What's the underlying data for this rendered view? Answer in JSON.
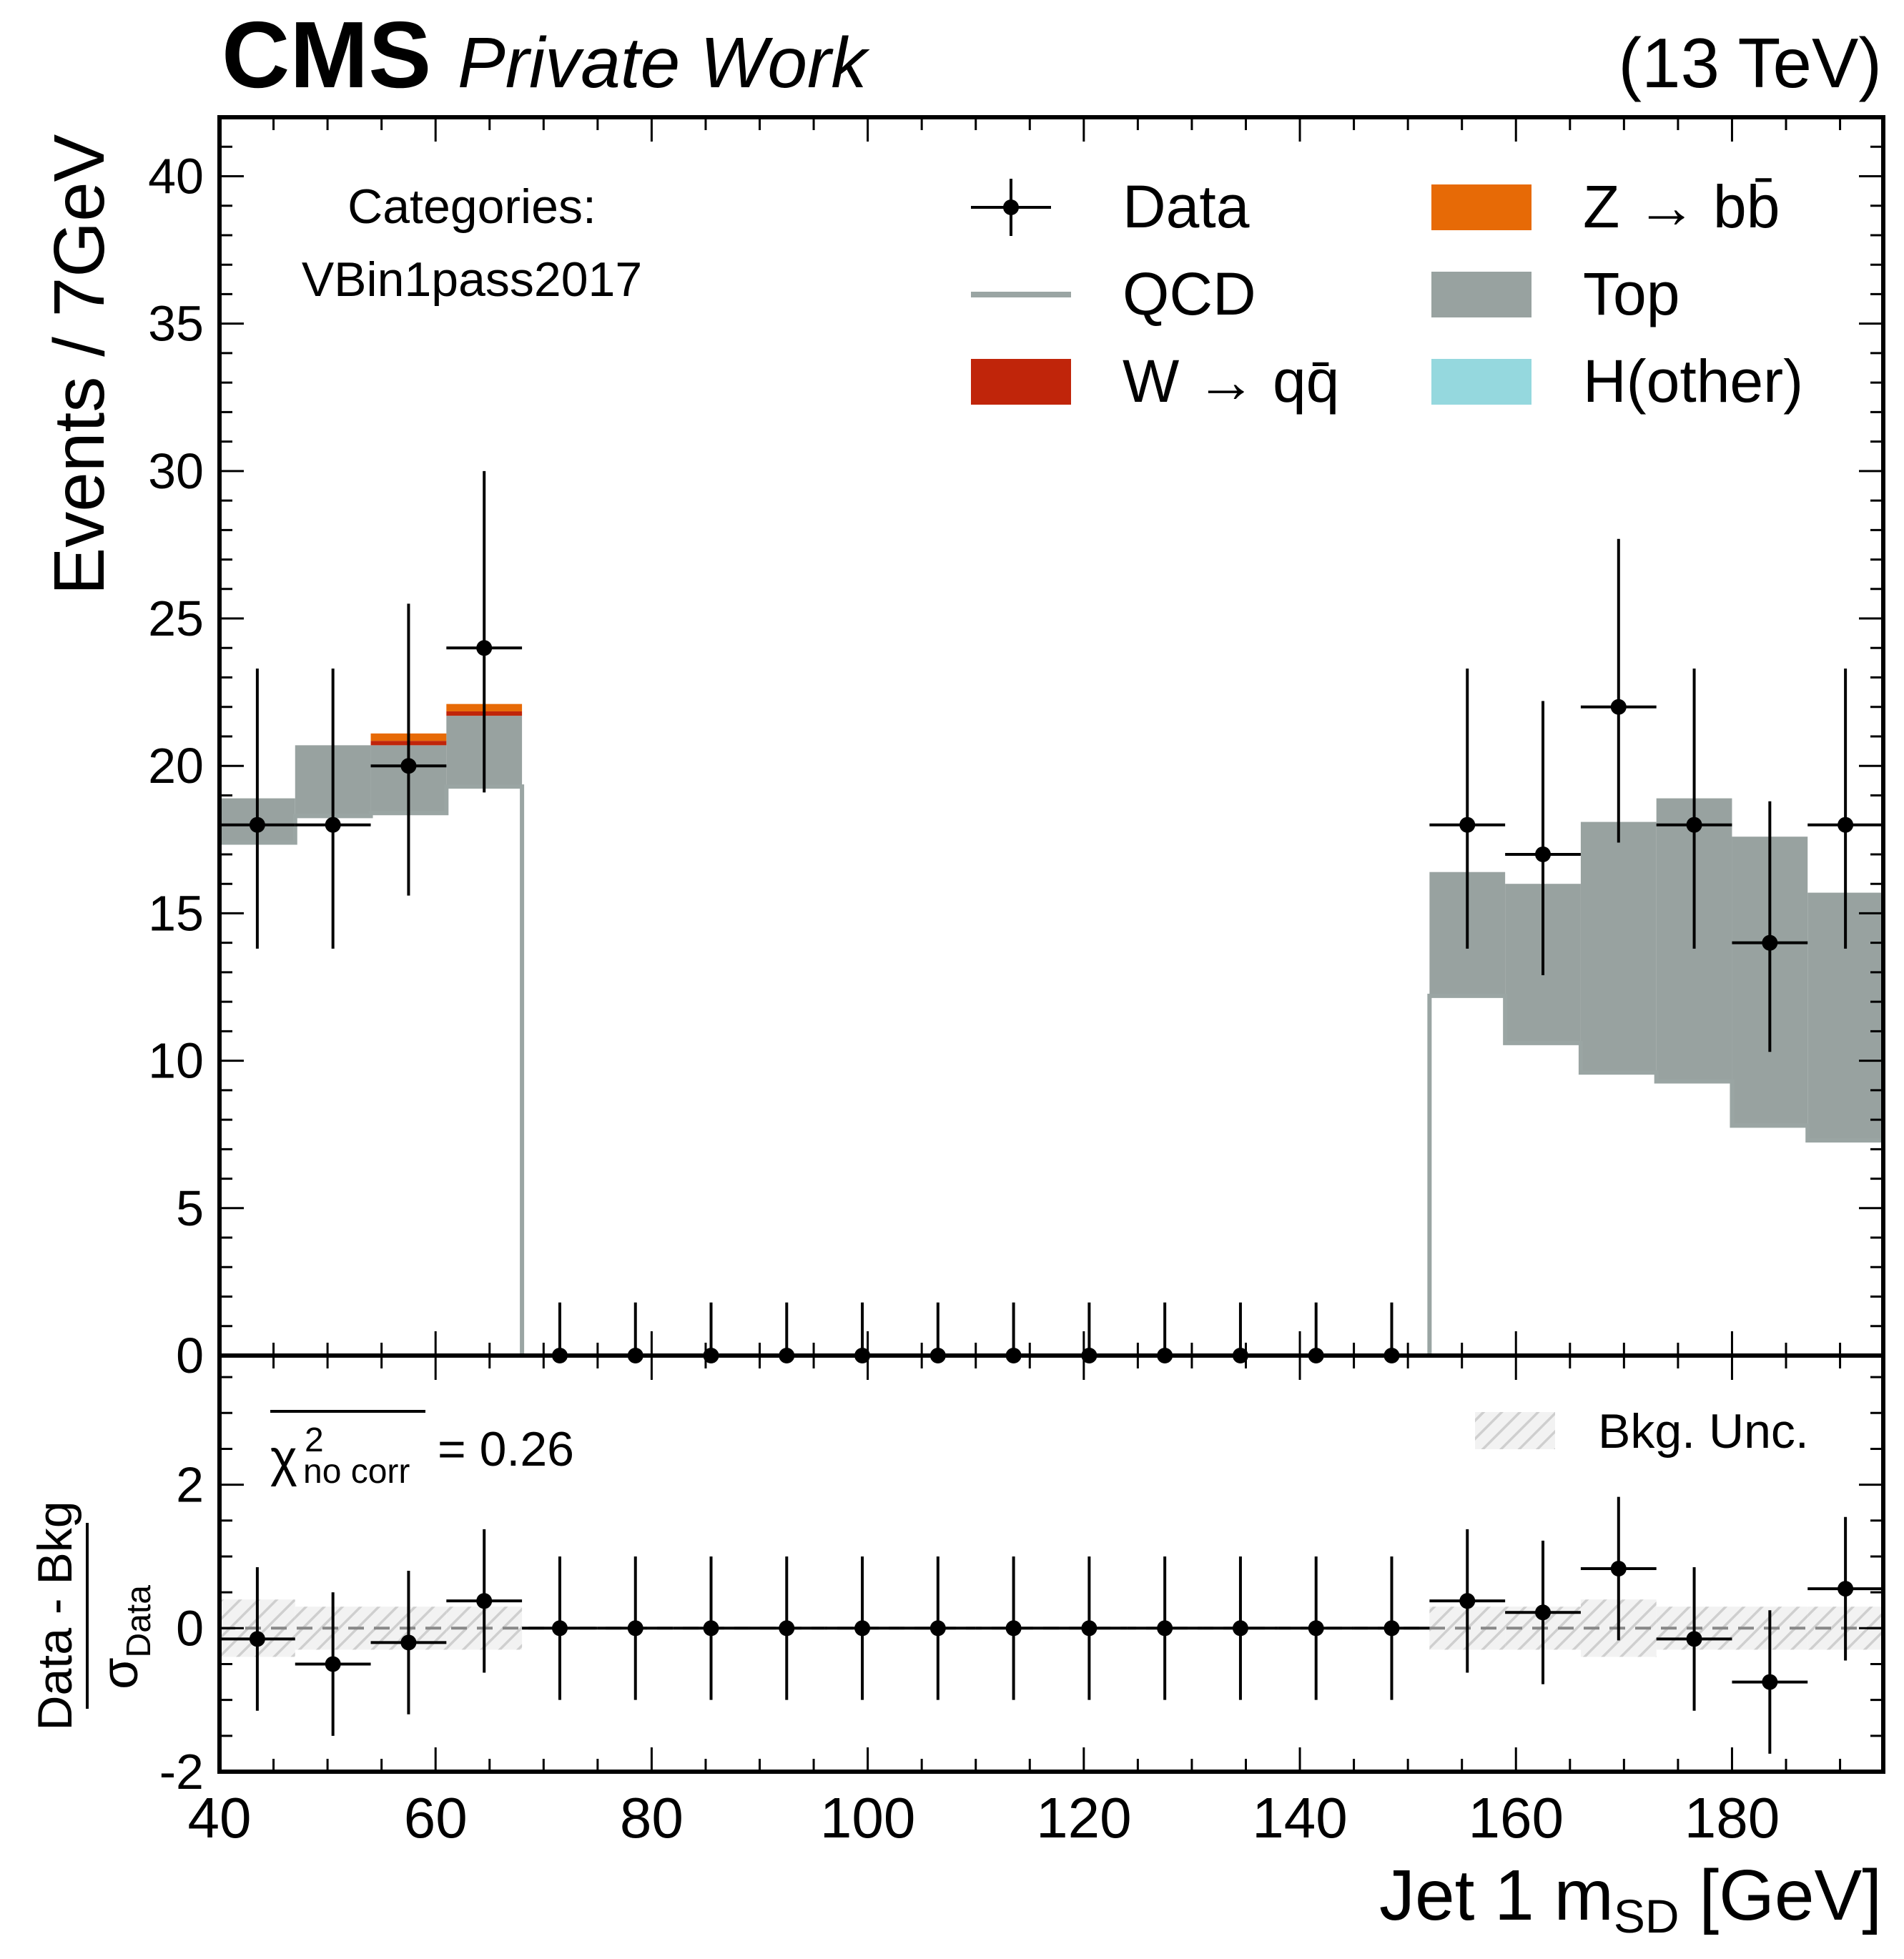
{
  "header": {
    "experiment": "CMS",
    "status": "Private Work",
    "energy": "(13 TeV)"
  },
  "category": {
    "title": "Categories:",
    "name": "VBin1pass2017"
  },
  "legend": {
    "placement": "top-right",
    "entries": [
      {
        "key": "data",
        "label": "Data",
        "style": "errorbar",
        "color": "#000000"
      },
      {
        "key": "qcd",
        "label": "QCD",
        "style": "line",
        "color": "#9aa5a3"
      },
      {
        "key": "wqq",
        "label": "W → qq̄",
        "style": "fill",
        "color": "#c0250a"
      },
      {
        "key": "zbb",
        "label": "Z → bb̄",
        "style": "fill",
        "color": "#e76a06"
      },
      {
        "key": "top",
        "label": "Top",
        "style": "fill",
        "color": "#98a2a0"
      },
      {
        "key": "hother",
        "label": "H(other)",
        "style": "fill",
        "color": "#95d8de"
      }
    ]
  },
  "chi2": {
    "label": "χ²",
    "subscript": "no corr",
    "value": "= 0.26"
  },
  "bkg_unc_label": "Bkg. Unc.",
  "chart_data": [
    {
      "type": "bar",
      "panel": "main",
      "xlabel": "Jet 1 m_SD [GeV]",
      "xlabel_main": "Jet 1 m",
      "xlabel_sub": "SD",
      "xlabel_unit": "[GeV]",
      "ylabel": "Events / 7GeV",
      "xlim": [
        40,
        194
      ],
      "ylim": [
        0,
        42
      ],
      "x_ticks": [
        "40",
        "60",
        "80",
        "100",
        "120",
        "140",
        "160",
        "180"
      ],
      "y_ticks": [
        "0",
        "5",
        "10",
        "15",
        "20",
        "25",
        "30",
        "35",
        "40"
      ],
      "bin_edges": [
        40,
        47,
        54,
        61,
        68,
        75,
        82,
        89,
        96,
        103,
        110,
        117,
        124,
        131,
        138,
        145,
        152,
        159,
        166,
        173,
        180,
        187,
        194
      ],
      "series": [
        {
          "name": "QCD",
          "values": [
            17.4,
            18.3,
            18.4,
            19.3,
            0,
            0,
            0,
            0,
            0,
            0,
            0,
            0,
            0,
            0,
            0,
            0,
            12.2,
            10.6,
            9.6,
            9.3,
            7.8,
            7.3
          ]
        },
        {
          "name": "Top",
          "values": [
            1.5,
            2.4,
            2.3,
            2.4,
            0,
            0,
            0,
            0,
            0,
            0,
            0,
            0,
            0,
            0,
            0,
            0,
            4.2,
            5.4,
            8.5,
            9.6,
            9.8,
            8.4
          ]
        },
        {
          "name": "W → qq̄",
          "values": [
            0,
            0,
            0.15,
            0.15,
            0,
            0,
            0,
            0,
            0,
            0,
            0,
            0,
            0,
            0,
            0,
            0,
            0,
            0,
            0,
            0,
            0,
            0
          ]
        },
        {
          "name": "Z → bb̄",
          "values": [
            0,
            0,
            0.25,
            0.25,
            0,
            0,
            0,
            0,
            0,
            0,
            0,
            0,
            0,
            0,
            0,
            0,
            0,
            0,
            0,
            0,
            0,
            0
          ]
        },
        {
          "name": "H(other)",
          "values": [
            0,
            0,
            0,
            0,
            0,
            0,
            0,
            0,
            0,
            0,
            0,
            0,
            0,
            0,
            0,
            0,
            0,
            0,
            0,
            0,
            0,
            0
          ]
        }
      ],
      "data": {
        "name": "Data",
        "values": [
          18,
          18,
          20,
          24,
          0,
          0,
          0,
          0,
          0,
          0,
          0,
          0,
          0,
          0,
          0,
          0,
          18,
          17,
          22,
          18,
          14,
          18
        ],
        "err_up": [
          5.3,
          5.3,
          5.5,
          6.0,
          1.8,
          1.8,
          1.8,
          1.8,
          1.8,
          1.8,
          1.8,
          1.8,
          1.8,
          1.8,
          1.8,
          1.8,
          5.3,
          5.2,
          5.7,
          5.3,
          4.8,
          5.3
        ],
        "err_down": [
          4.2,
          4.2,
          4.4,
          4.9,
          0,
          0,
          0,
          0,
          0,
          0,
          0,
          0,
          0,
          0,
          0,
          0,
          4.2,
          4.1,
          4.6,
          4.2,
          3.7,
          4.2
        ]
      }
    },
    {
      "type": "scatter",
      "panel": "ratio",
      "ylabel": "(Data - Bkg) / σ_Data",
      "ylabel_top": "Data - Bkg",
      "ylabel_bottom": "σ",
      "ylabel_bottom_sub": "Data",
      "ylim": [
        -2,
        3.8
      ],
      "y_ticks": [
        "-2",
        "0",
        "2"
      ],
      "x": [
        43.5,
        50.5,
        57.5,
        64.5,
        71.5,
        78.5,
        85.5,
        92.5,
        99.5,
        106.5,
        113.5,
        120.5,
        127.5,
        134.5,
        141.5,
        148.5,
        155.5,
        162.5,
        169.5,
        176.5,
        183.5,
        190.5
      ],
      "values": [
        -0.15,
        -0.5,
        -0.2,
        0.38,
        0,
        0,
        0,
        0,
        0,
        0,
        0,
        0,
        0,
        0,
        0,
        0,
        0.38,
        0.22,
        0.83,
        -0.15,
        -0.75,
        0.55
      ],
      "err": [
        1.0,
        1.0,
        1.0,
        1.0,
        1.0,
        1.0,
        1.0,
        1.0,
        1.0,
        1.0,
        1.0,
        1.0,
        1.0,
        1.0,
        1.0,
        1.0,
        1.0,
        1.0,
        1.0,
        1.0,
        1.0,
        1.0
      ],
      "bkg_unc": [
        0.4,
        0.3,
        0.3,
        0.3,
        0,
        0,
        0,
        0,
        0,
        0,
        0,
        0,
        0,
        0,
        0,
        0,
        0.3,
        0.3,
        0.4,
        0.3,
        0.3,
        0.3
      ]
    }
  ]
}
